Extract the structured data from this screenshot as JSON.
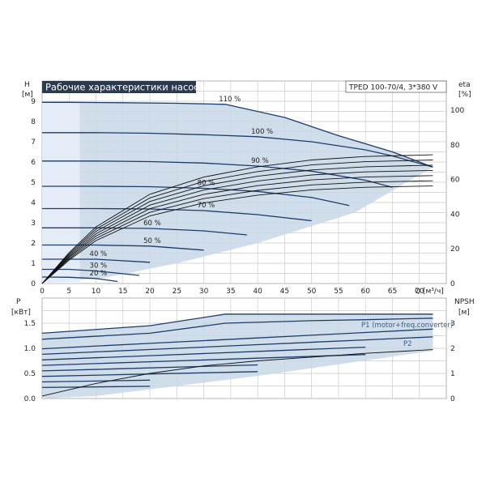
{
  "chart_data": [
    {
      "type": "line",
      "title": "Рабочие характеристики насоса",
      "model": "TPED 100-70/4, 3*380 V",
      "ylabel": "H",
      "yunit": "[м]",
      "y2label": "eta",
      "y2unit": "[%]",
      "xlabel": "Q",
      "xunit": "[м³/ч]",
      "xlim": [
        0,
        75
      ],
      "ylim": [
        0,
        10
      ],
      "y2lim": [
        0,
        100
      ],
      "xticks": [
        "0",
        "5",
        "10",
        "15",
        "20",
        "25",
        "30",
        "35",
        "40",
        "45",
        "50",
        "55",
        "60",
        "65",
        "70"
      ],
      "yticks": [
        "0",
        "1",
        "2",
        "3",
        "4",
        "5",
        "6",
        "7",
        "8",
        "9"
      ],
      "y2ticks": [
        "0",
        "20",
        "40",
        "60",
        "80",
        "100"
      ],
      "grid": true,
      "series": [
        {
          "name": "110 %",
          "x": [
            0,
            5,
            15,
            25,
            34,
            45,
            55,
            65,
            72.5
          ],
          "y": [
            8.95,
            8.95,
            8.93,
            8.9,
            8.85,
            8.2,
            7.3,
            6.5,
            5.75
          ]
        },
        {
          "name": "100 %",
          "x": [
            0,
            10,
            20,
            30,
            40,
            50,
            60,
            65,
            72.5
          ],
          "y": [
            7.45,
            7.45,
            7.42,
            7.35,
            7.25,
            7.0,
            6.6,
            6.3,
            5.75
          ]
        },
        {
          "name": "90 %",
          "x": [
            0,
            10,
            20,
            30,
            40,
            50,
            60,
            65
          ],
          "y": [
            6.05,
            6.05,
            6.02,
            5.95,
            5.8,
            5.55,
            5.1,
            4.75
          ]
        },
        {
          "name": "80 %",
          "x": [
            0,
            10,
            20,
            30,
            40,
            50,
            57
          ],
          "y": [
            4.8,
            4.8,
            4.78,
            4.7,
            4.55,
            4.25,
            3.85
          ]
        },
        {
          "name": "70 %",
          "x": [
            0,
            10,
            20,
            30,
            40,
            50
          ],
          "y": [
            3.7,
            3.7,
            3.68,
            3.6,
            3.4,
            3.1
          ]
        },
        {
          "name": "60 %",
          "x": [
            0,
            10,
            20,
            30,
            38
          ],
          "y": [
            2.75,
            2.75,
            2.72,
            2.6,
            2.4
          ]
        },
        {
          "name": "50 %",
          "x": [
            0,
            10,
            20,
            30
          ],
          "y": [
            1.9,
            1.9,
            1.85,
            1.65
          ]
        },
        {
          "name": "40 %",
          "x": [
            0,
            10,
            20
          ],
          "y": [
            1.2,
            1.2,
            1.05
          ]
        },
        {
          "name": "30 %",
          "x": [
            0,
            5,
            10,
            18
          ],
          "y": [
            0.7,
            0.7,
            0.62,
            0.4
          ]
        },
        {
          "name": "20 %",
          "x": [
            0,
            5,
            10,
            14
          ],
          "y": [
            0.32,
            0.31,
            0.25,
            0.1
          ]
        }
      ],
      "eta_series": {
        "x": [
          0,
          5,
          10,
          20,
          30,
          40,
          50,
          60,
          72.5
        ],
        "y": [
          0,
          18,
          33,
          52,
          62,
          68,
          72,
          74,
          75
        ]
      },
      "annotations": [
        "110 %",
        "100 %",
        "90 %",
        "80 %",
        "70 %",
        "60 %",
        "50 %",
        "40 %",
        "30 %",
        "20 %"
      ]
    },
    {
      "type": "line",
      "ylabel": "P",
      "yunit": "[кВт]",
      "y2label": "NPSH",
      "y2unit": "[м]",
      "xlim": [
        0,
        75
      ],
      "ylim": [
        0,
        2.0
      ],
      "y2lim": [
        0,
        4
      ],
      "yticks": [
        "0.0",
        "0.5",
        "1.0",
        "1.5"
      ],
      "y2ticks": [
        "0",
        "1",
        "2",
        "3"
      ],
      "grid": true,
      "series": [
        {
          "name": "P1 (motor+freq.converter)",
          "x": [
            0,
            20,
            34,
            50,
            60,
            72.5
          ],
          "y": [
            1.3,
            1.45,
            1.68,
            1.68,
            1.68,
            1.68
          ]
        },
        {
          "name": "P2",
          "x": [
            0,
            20,
            34,
            50,
            60,
            72.5
          ],
          "y": [
            1.18,
            1.3,
            1.5,
            1.55,
            1.57,
            1.6
          ]
        }
      ],
      "npsh_series": {
        "x": [
          0,
          10,
          20,
          30,
          40,
          50,
          60,
          72.5
        ],
        "y": [
          0.1,
          0.6,
          1.0,
          1.3,
          1.5,
          1.65,
          1.8,
          1.95
        ]
      }
    }
  ]
}
